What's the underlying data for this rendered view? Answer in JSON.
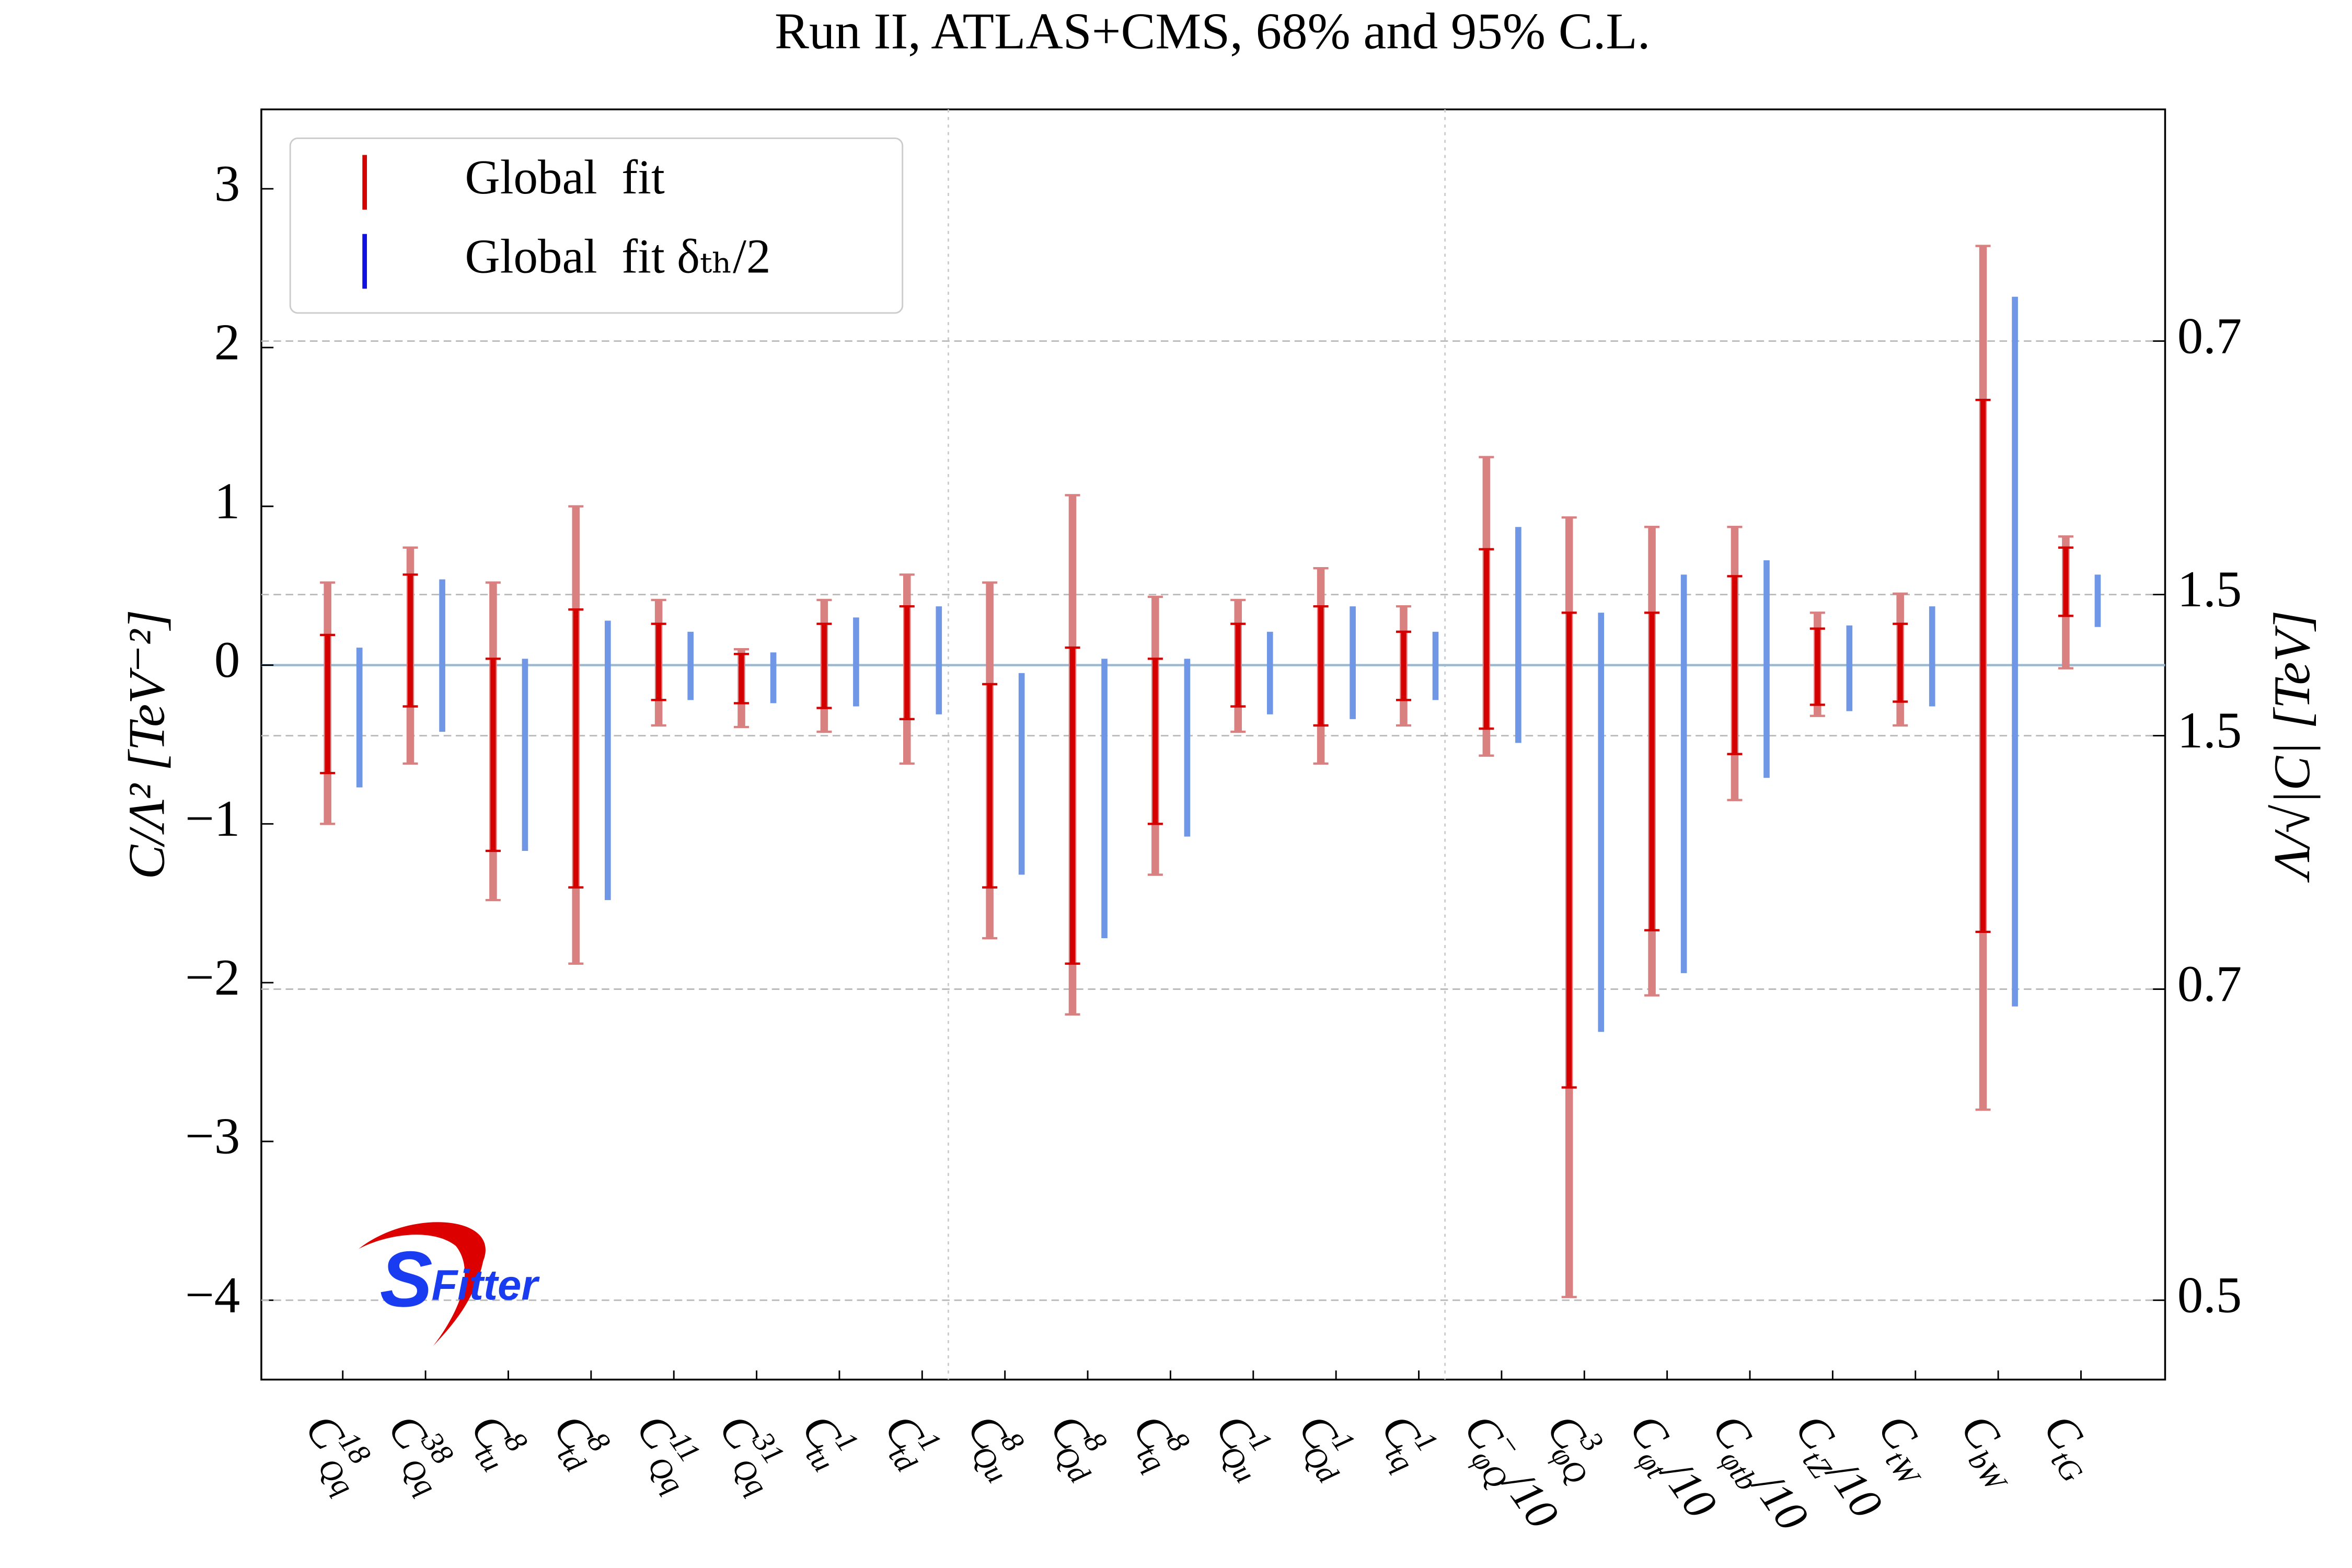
{
  "chart_data": {
    "type": "interval",
    "title": "Run II, ATLAS+CMS, 68% and 95% C.L.",
    "ylabel": "C/Λ²  [TeV⁻²]",
    "y2label": "Λ/√|C|  [TeV]",
    "categories": [
      {
        "main": "C",
        "sup": "18",
        "sub": "Qq",
        "tail": ""
      },
      {
        "main": "C",
        "sup": "38",
        "sub": "Qq",
        "tail": ""
      },
      {
        "main": "C",
        "sup": "8",
        "sub": "tu",
        "tail": ""
      },
      {
        "main": "C",
        "sup": "8",
        "sub": "td",
        "tail": ""
      },
      {
        "main": "C",
        "sup": "11",
        "sub": "Qq",
        "tail": ""
      },
      {
        "main": "C",
        "sup": "31",
        "sub": "Qq",
        "tail": ""
      },
      {
        "main": "C",
        "sup": "1",
        "sub": "tu",
        "tail": ""
      },
      {
        "main": "C",
        "sup": "1",
        "sub": "td",
        "tail": ""
      },
      {
        "main": "C",
        "sup": "8",
        "sub": "Qu",
        "tail": ""
      },
      {
        "main": "C",
        "sup": "8",
        "sub": "Qd",
        "tail": ""
      },
      {
        "main": "C",
        "sup": "8",
        "sub": "tq",
        "tail": ""
      },
      {
        "main": "C",
        "sup": "1",
        "sub": "Qu",
        "tail": ""
      },
      {
        "main": "C",
        "sup": "1",
        "sub": "Qd",
        "tail": ""
      },
      {
        "main": "C",
        "sup": "1",
        "sub": "tq",
        "tail": ""
      },
      {
        "main": "C",
        "sup": "−",
        "sub": "φQ",
        "tail": "/10"
      },
      {
        "main": "C",
        "sup": "3",
        "sub": "φQ",
        "tail": ""
      },
      {
        "main": "C",
        "sup": "",
        "sub": "φt",
        "tail": "/10"
      },
      {
        "main": "C",
        "sup": "",
        "sub": "φtb",
        "tail": "/10"
      },
      {
        "main": "C",
        "sup": "",
        "sub": "tZ",
        "tail": "/10"
      },
      {
        "main": "C",
        "sup": "",
        "sub": "tW",
        "tail": ""
      },
      {
        "main": "C",
        "sup": "",
        "sub": "bW",
        "tail": ""
      },
      {
        "main": "C",
        "sup": "",
        "sub": "tG",
        "tail": ""
      }
    ],
    "series": [
      {
        "name": "Global  fit",
        "color": "#d40000",
        "color_light": "#d98080",
        "hi95": [
          0.52,
          0.74,
          0.52,
          1.0,
          0.41,
          0.1,
          0.41,
          0.57,
          0.52,
          1.07,
          0.43,
          0.41,
          0.61,
          0.37,
          1.31,
          0.93,
          0.87,
          0.87,
          0.33,
          0.45,
          2.64,
          0.81
        ],
        "hi68": [
          0.19,
          0.57,
          0.04,
          0.35,
          0.26,
          0.07,
          0.26,
          0.37,
          -0.12,
          0.11,
          0.04,
          0.26,
          0.37,
          0.21,
          0.73,
          0.33,
          0.33,
          0.56,
          0.23,
          0.26,
          1.67,
          0.74
        ],
        "lo68": [
          -0.68,
          -0.26,
          -1.17,
          -1.4,
          -0.22,
          -0.24,
          -0.27,
          -0.34,
          -1.4,
          -1.88,
          -1.0,
          -0.26,
          -0.38,
          -0.22,
          -0.4,
          -2.66,
          -1.67,
          -0.56,
          -0.25,
          -0.23,
          -1.68,
          0.31
        ],
        "lo95": [
          -1.0,
          -0.62,
          -1.48,
          -1.88,
          -0.38,
          -0.39,
          -0.42,
          -0.62,
          -1.72,
          -2.2,
          -1.32,
          -0.42,
          -0.62,
          -0.38,
          -0.57,
          -3.98,
          -2.08,
          -0.85,
          -0.32,
          -0.38,
          -2.8,
          -0.02
        ]
      },
      {
        "name": "Global  fit δₜₕ/2",
        "color": "#1010e0",
        "color_light": "#7096e6",
        "hi": [
          0.11,
          0.54,
          0.04,
          0.28,
          0.21,
          0.08,
          0.3,
          0.37,
          -0.05,
          0.04,
          0.04,
          0.21,
          0.37,
          0.21,
          0.87,
          0.33,
          0.57,
          0.66,
          0.25,
          0.37,
          2.32,
          0.57
        ],
        "lo": [
          -0.77,
          -0.42,
          -1.17,
          -1.48,
          -0.22,
          -0.24,
          -0.26,
          -0.31,
          -1.32,
          -1.72,
          -1.08,
          -0.31,
          -0.34,
          -0.22,
          -0.49,
          -2.31,
          -1.94,
          -0.71,
          -0.29,
          -0.26,
          -2.15,
          0.24
        ]
      }
    ],
    "ylim": [
      -4.5,
      3.5
    ],
    "yticks": [
      {
        "value": -4,
        "label": "−4"
      },
      {
        "value": -3,
        "label": "−3"
      },
      {
        "value": -2,
        "label": "−2"
      },
      {
        "value": -1,
        "label": "−1"
      },
      0,
      1,
      2,
      3
    ],
    "y2ticks_positive": [
      0.7,
      1.5
    ],
    "y2ticks_negative": [
      1.5,
      0.7,
      0.5
    ],
    "legend": "upper left",
    "logo": {
      "s": "S",
      "rest": "Fitter"
    }
  }
}
